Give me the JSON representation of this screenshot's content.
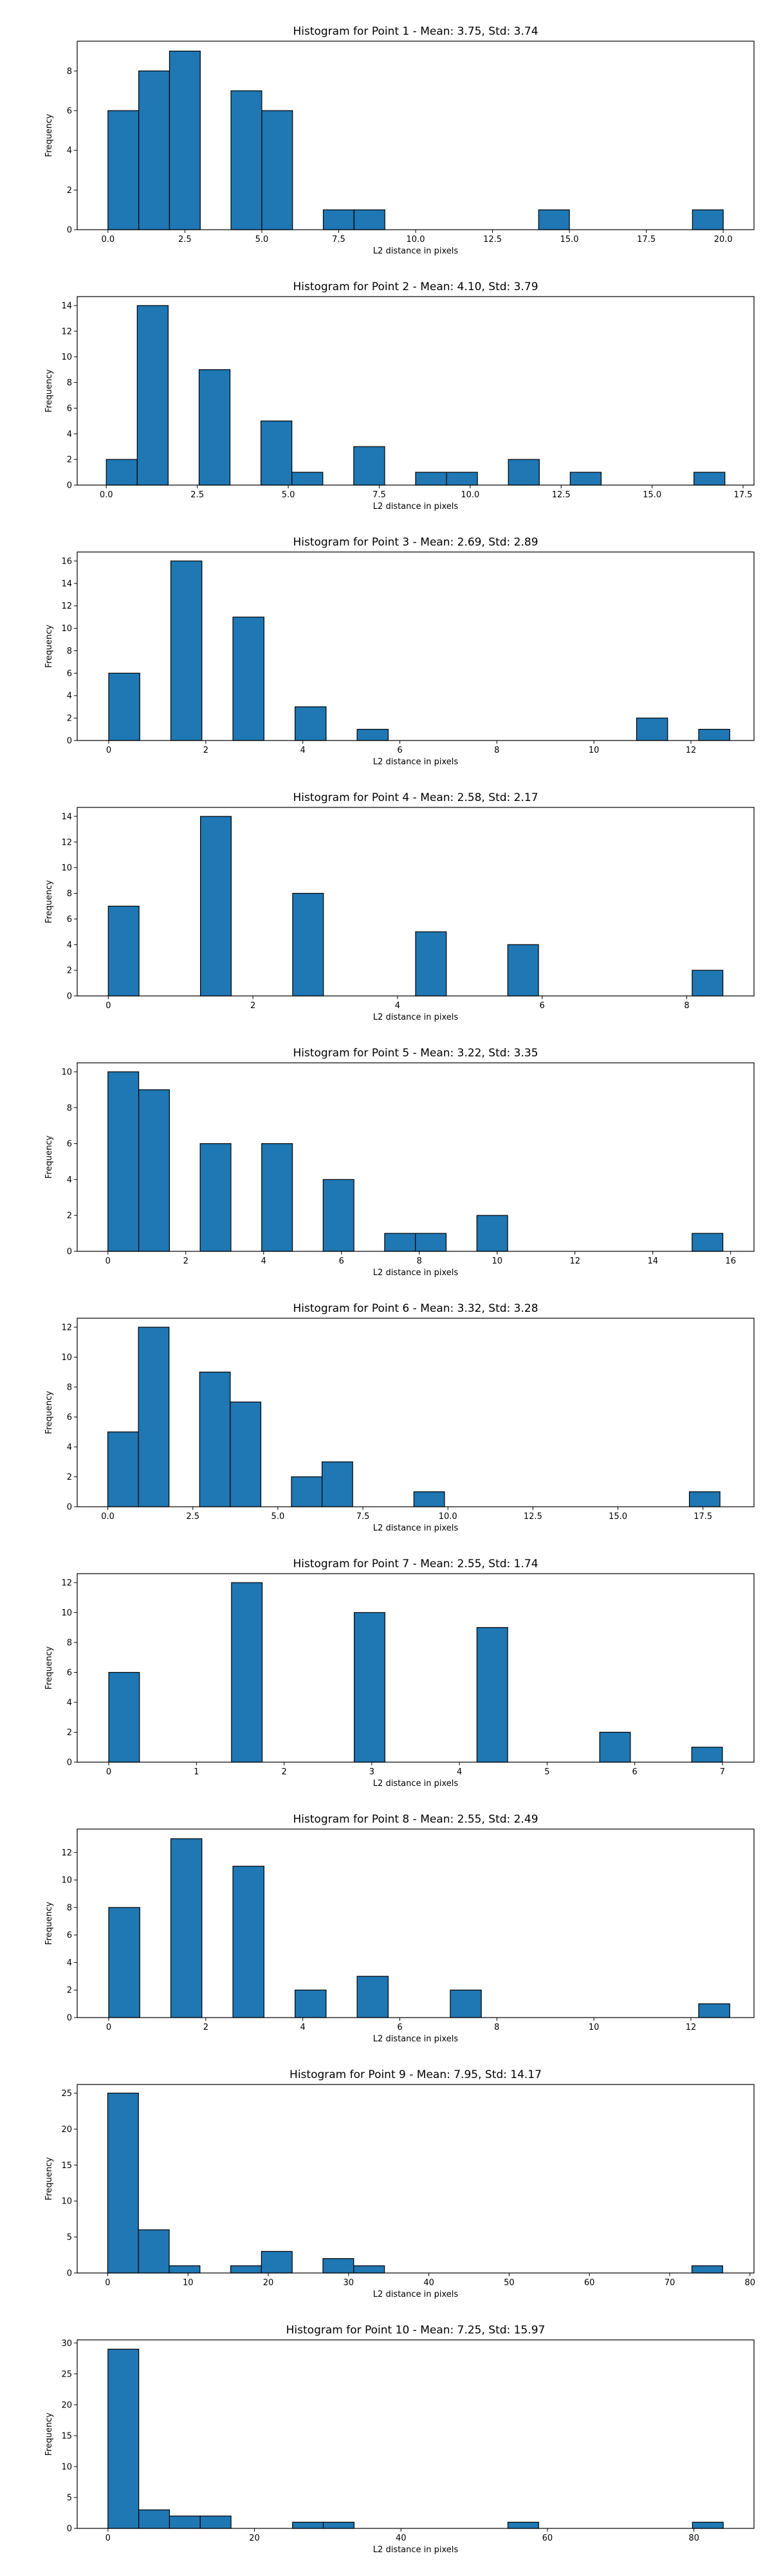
{
  "chart_data": [
    {
      "type": "bar",
      "title": "Histogram for Point 1 - Mean: 3.75, Std: 3.74",
      "xlabel": "L2 distance in pixels",
      "ylabel": "Frequency",
      "xlim": [
        -1,
        21
      ],
      "ylim": [
        0,
        9.5
      ],
      "xticks": [
        0,
        2.5,
        5,
        7.5,
        10,
        12.5,
        15,
        17.5,
        20
      ],
      "xtick_labels": [
        "0.0",
        "2.5",
        "5.0",
        "7.5",
        "10.0",
        "12.5",
        "15.0",
        "17.5",
        "20.0"
      ],
      "yticks": [
        0,
        2,
        4,
        6,
        8
      ],
      "bars": [
        {
          "x0": 0.0,
          "x1": 1.0,
          "value": 6
        },
        {
          "x0": 1.0,
          "x1": 2.0,
          "value": 8
        },
        {
          "x0": 2.0,
          "x1": 3.0,
          "value": 9
        },
        {
          "x0": 4.0,
          "x1": 5.0,
          "value": 7
        },
        {
          "x0": 5.0,
          "x1": 6.0,
          "value": 6
        },
        {
          "x0": 7.0,
          "x1": 8.0,
          "value": 1
        },
        {
          "x0": 8.0,
          "x1": 9.0,
          "value": 1
        },
        {
          "x0": 14.0,
          "x1": 15.0,
          "value": 1
        },
        {
          "x0": 19.0,
          "x1": 20.0,
          "value": 1
        }
      ],
      "grid": false
    },
    {
      "type": "bar",
      "title": "Histogram for Point 2 - Mean: 4.10, Std: 3.79",
      "xlabel": "L2 distance in pixels",
      "ylabel": "Frequency",
      "xlim": [
        -0.8,
        17.8
      ],
      "ylim": [
        0,
        14.7
      ],
      "xticks": [
        0,
        2.5,
        5,
        7.5,
        10,
        12.5,
        15,
        17.5
      ],
      "xtick_labels": [
        "0.0",
        "2.5",
        "5.0",
        "7.5",
        "10.0",
        "12.5",
        "15.0",
        "17.5"
      ],
      "yticks": [
        0,
        2,
        4,
        6,
        8,
        10,
        12,
        14
      ],
      "bars": [
        {
          "x0": 0.0,
          "x1": 0.85,
          "value": 2
        },
        {
          "x0": 0.85,
          "x1": 1.7,
          "value": 14
        },
        {
          "x0": 2.55,
          "x1": 3.4,
          "value": 9
        },
        {
          "x0": 4.25,
          "x1": 5.1,
          "value": 5
        },
        {
          "x0": 5.1,
          "x1": 5.95,
          "value": 1
        },
        {
          "x0": 6.8,
          "x1": 7.65,
          "value": 3
        },
        {
          "x0": 8.5,
          "x1": 9.35,
          "value": 1
        },
        {
          "x0": 9.35,
          "x1": 10.2,
          "value": 1
        },
        {
          "x0": 11.05,
          "x1": 11.9,
          "value": 2
        },
        {
          "x0": 12.75,
          "x1": 13.6,
          "value": 1
        },
        {
          "x0": 16.15,
          "x1": 17.0,
          "value": 1
        }
      ],
      "grid": false
    },
    {
      "type": "bar",
      "title": "Histogram for Point 3 - Mean: 2.69, Std: 2.89",
      "xlabel": "L2 distance in pixels",
      "ylabel": "Frequency",
      "xlim": [
        -0.65,
        13.3
      ],
      "ylim": [
        0,
        16.8
      ],
      "xticks": [
        0,
        2,
        4,
        6,
        8,
        10,
        12
      ],
      "xtick_labels": [
        "0",
        "2",
        "4",
        "6",
        "8",
        "10",
        "12"
      ],
      "yticks": [
        0,
        2,
        4,
        6,
        8,
        10,
        12,
        14,
        16
      ],
      "bars": [
        {
          "x0": 0.0,
          "x1": 0.64,
          "value": 6
        },
        {
          "x0": 1.28,
          "x1": 1.92,
          "value": 16
        },
        {
          "x0": 2.56,
          "x1": 3.2,
          "value": 11
        },
        {
          "x0": 3.84,
          "x1": 4.48,
          "value": 3
        },
        {
          "x0": 5.12,
          "x1": 5.76,
          "value": 1
        },
        {
          "x0": 10.88,
          "x1": 11.52,
          "value": 2
        },
        {
          "x0": 12.16,
          "x1": 12.8,
          "value": 1
        }
      ],
      "grid": false
    },
    {
      "type": "bar",
      "title": "Histogram for Point 4 - Mean: 2.58, Std: 2.17",
      "xlabel": "L2 distance in pixels",
      "ylabel": "Frequency",
      "xlim": [
        -0.43,
        8.93
      ],
      "ylim": [
        0,
        14.7
      ],
      "xticks": [
        0,
        2,
        4,
        6,
        8
      ],
      "xtick_labels": [
        "0",
        "2",
        "4",
        "6",
        "8"
      ],
      "yticks": [
        0,
        2,
        4,
        6,
        8,
        10,
        12,
        14
      ],
      "bars": [
        {
          "x0": 0.0,
          "x1": 0.425,
          "value": 7
        },
        {
          "x0": 1.275,
          "x1": 1.7,
          "value": 14
        },
        {
          "x0": 2.55,
          "x1": 2.975,
          "value": 8
        },
        {
          "x0": 4.25,
          "x1": 4.675,
          "value": 5
        },
        {
          "x0": 5.525,
          "x1": 5.95,
          "value": 4
        },
        {
          "x0": 8.075,
          "x1": 8.5,
          "value": 2
        }
      ],
      "grid": false
    },
    {
      "type": "bar",
      "title": "Histogram for Point 5 - Mean: 3.22, Std: 3.35",
      "xlabel": "L2 distance in pixels",
      "ylabel": "Frequency",
      "xlim": [
        -0.79,
        16.6
      ],
      "ylim": [
        0,
        10.5
      ],
      "xticks": [
        0,
        2,
        4,
        6,
        8,
        10,
        12,
        14,
        16
      ],
      "xtick_labels": [
        "0",
        "2",
        "4",
        "6",
        "8",
        "10",
        "12",
        "14",
        "16"
      ],
      "yticks": [
        0,
        2,
        4,
        6,
        8,
        10
      ],
      "bars": [
        {
          "x0": 0.0,
          "x1": 0.79,
          "value": 10
        },
        {
          "x0": 0.79,
          "x1": 1.58,
          "value": 9
        },
        {
          "x0": 2.37,
          "x1": 3.16,
          "value": 6
        },
        {
          "x0": 3.95,
          "x1": 4.74,
          "value": 6
        },
        {
          "x0": 5.53,
          "x1": 6.32,
          "value": 4
        },
        {
          "x0": 7.11,
          "x1": 7.9,
          "value": 1
        },
        {
          "x0": 7.9,
          "x1": 8.69,
          "value": 1
        },
        {
          "x0": 9.48,
          "x1": 10.27,
          "value": 2
        },
        {
          "x0": 15.01,
          "x1": 15.8,
          "value": 1
        }
      ],
      "grid": false
    },
    {
      "type": "bar",
      "title": "Histogram for Point 6 - Mean: 3.32, Std: 3.28",
      "xlabel": "L2 distance in pixels",
      "ylabel": "Frequency",
      "xlim": [
        -0.9,
        19.0
      ],
      "ylim": [
        0,
        12.6
      ],
      "xticks": [
        0,
        2.5,
        5,
        7.5,
        10,
        12.5,
        15,
        17.5
      ],
      "xtick_labels": [
        "0.0",
        "2.5",
        "5.0",
        "7.5",
        "10.0",
        "12.5",
        "15.0",
        "17.5"
      ],
      "yticks": [
        0,
        2,
        4,
        6,
        8,
        10,
        12
      ],
      "bars": [
        {
          "x0": 0.0,
          "x1": 0.9,
          "value": 5
        },
        {
          "x0": 0.9,
          "x1": 1.8,
          "value": 12
        },
        {
          "x0": 2.7,
          "x1": 3.6,
          "value": 9
        },
        {
          "x0": 3.6,
          "x1": 4.5,
          "value": 7
        },
        {
          "x0": 5.4,
          "x1": 6.3,
          "value": 2
        },
        {
          "x0": 6.3,
          "x1": 7.2,
          "value": 3
        },
        {
          "x0": 9.0,
          "x1": 9.9,
          "value": 1
        },
        {
          "x0": 17.1,
          "x1": 18.0,
          "value": 1
        }
      ],
      "grid": false
    },
    {
      "type": "bar",
      "title": "Histogram for Point 7 - Mean: 2.55, Std: 1.74",
      "xlabel": "L2 distance in pixels",
      "ylabel": "Frequency",
      "xlim": [
        -0.36,
        7.36
      ],
      "ylim": [
        0,
        12.6
      ],
      "xticks": [
        0,
        1,
        2,
        3,
        4,
        5,
        6,
        7
      ],
      "xtick_labels": [
        "0",
        "1",
        "2",
        "3",
        "4",
        "5",
        "6",
        "7"
      ],
      "yticks": [
        0,
        2,
        4,
        6,
        8,
        10,
        12
      ],
      "bars": [
        {
          "x0": 0.0,
          "x1": 0.35,
          "value": 6
        },
        {
          "x0": 1.4,
          "x1": 1.75,
          "value": 12
        },
        {
          "x0": 2.8,
          "x1": 3.15,
          "value": 10
        },
        {
          "x0": 4.2,
          "x1": 4.55,
          "value": 9
        },
        {
          "x0": 5.6,
          "x1": 5.95,
          "value": 2
        },
        {
          "x0": 6.65,
          "x1": 7.0,
          "value": 1
        }
      ],
      "grid": false
    },
    {
      "type": "bar",
      "title": "Histogram for Point 8 - Mean: 2.55, Std: 2.49",
      "xlabel": "L2 distance in pixels",
      "ylabel": "Frequency",
      "xlim": [
        -0.65,
        13.3
      ],
      "ylim": [
        0,
        13.7
      ],
      "xticks": [
        0,
        2,
        4,
        6,
        8,
        10,
        12
      ],
      "xtick_labels": [
        "0",
        "2",
        "4",
        "6",
        "8",
        "10",
        "12"
      ],
      "yticks": [
        0,
        2,
        4,
        6,
        8,
        10,
        12
      ],
      "bars": [
        {
          "x0": 0.0,
          "x1": 0.64,
          "value": 8
        },
        {
          "x0": 1.28,
          "x1": 1.92,
          "value": 13
        },
        {
          "x0": 2.56,
          "x1": 3.2,
          "value": 11
        },
        {
          "x0": 3.84,
          "x1": 4.48,
          "value": 2
        },
        {
          "x0": 5.12,
          "x1": 5.76,
          "value": 3
        },
        {
          "x0": 7.04,
          "x1": 7.68,
          "value": 2
        },
        {
          "x0": 12.16,
          "x1": 12.8,
          "value": 1
        }
      ],
      "grid": false
    },
    {
      "type": "bar",
      "title": "Histogram for Point 9 - Mean: 7.95, Std: 14.17",
      "xlabel": "L2 distance in pixels",
      "ylabel": "Frequency",
      "xlim": [
        -3.8,
        80.5
      ],
      "ylim": [
        0,
        26.2
      ],
      "xticks": [
        0,
        10,
        20,
        30,
        40,
        50,
        60,
        70,
        80
      ],
      "xtick_labels": [
        "0",
        "10",
        "20",
        "30",
        "40",
        "50",
        "60",
        "70",
        "80"
      ],
      "yticks": [
        0,
        5,
        10,
        15,
        20,
        25
      ],
      "bars": [
        {
          "x0": 0.0,
          "x1": 3.83,
          "value": 25
        },
        {
          "x0": 3.83,
          "x1": 7.66,
          "value": 6
        },
        {
          "x0": 7.66,
          "x1": 11.49,
          "value": 1
        },
        {
          "x0": 15.32,
          "x1": 19.15,
          "value": 1
        },
        {
          "x0": 19.15,
          "x1": 22.98,
          "value": 3
        },
        {
          "x0": 26.81,
          "x1": 30.64,
          "value": 2
        },
        {
          "x0": 30.64,
          "x1": 34.47,
          "value": 1
        },
        {
          "x0": 72.77,
          "x1": 76.6,
          "value": 1
        }
      ],
      "grid": false
    },
    {
      "type": "bar",
      "title": "Histogram for Point 10 - Mean: 7.25, Std: 15.97",
      "xlabel": "L2 distance in pixels",
      "ylabel": "Frequency",
      "xlim": [
        -4.2,
        88.2
      ],
      "ylim": [
        0,
        30.5
      ],
      "xticks": [
        0,
        20,
        40,
        60,
        80
      ],
      "xtick_labels": [
        "0",
        "20",
        "40",
        "60",
        "80"
      ],
      "yticks": [
        0,
        5,
        10,
        15,
        20,
        25,
        30
      ],
      "bars": [
        {
          "x0": 0.0,
          "x1": 4.2,
          "value": 29
        },
        {
          "x0": 4.2,
          "x1": 8.4,
          "value": 3
        },
        {
          "x0": 8.4,
          "x1": 12.6,
          "value": 2
        },
        {
          "x0": 12.6,
          "x1": 16.8,
          "value": 2
        },
        {
          "x0": 25.2,
          "x1": 29.4,
          "value": 1
        },
        {
          "x0": 29.4,
          "x1": 33.6,
          "value": 1
        },
        {
          "x0": 54.6,
          "x1": 58.8,
          "value": 1
        },
        {
          "x0": 79.8,
          "x1": 84.0,
          "value": 1
        }
      ],
      "grid": false
    }
  ],
  "colors": {
    "bar_fill": "#1f77b4",
    "bar_edge": "#000000",
    "axes": "#000000",
    "background": "#ffffff"
  }
}
